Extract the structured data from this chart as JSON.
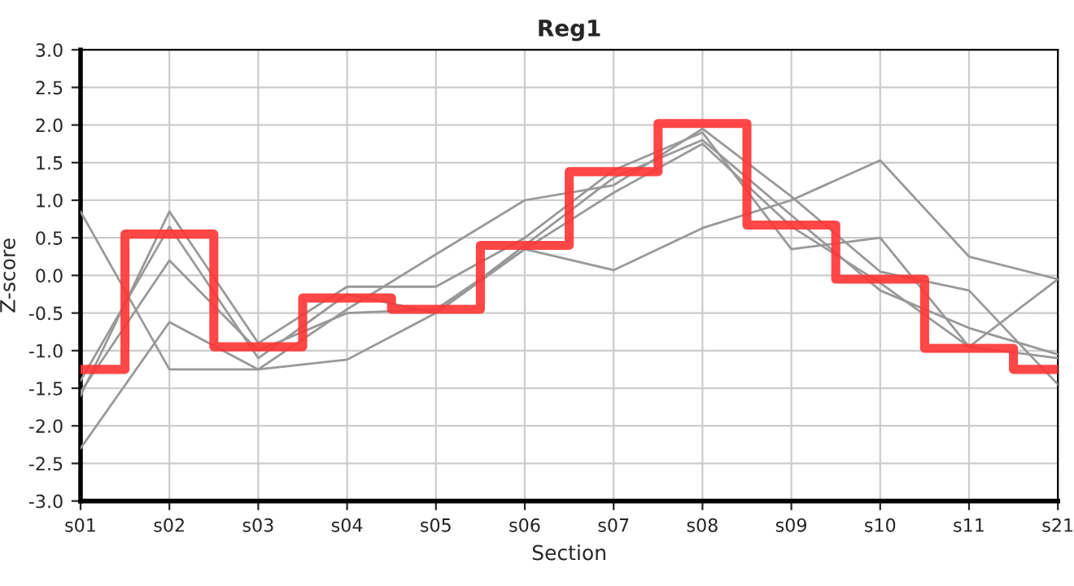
{
  "chart_data": {
    "type": "line",
    "title": "Reg1",
    "xlabel": "Section",
    "ylabel": "Z-score",
    "categories": [
      "s01",
      "s02",
      "s03",
      "s04",
      "s05",
      "s06",
      "s07",
      "s08",
      "s09",
      "s10",
      "s11",
      "s21"
    ],
    "series": [
      {
        "color": "#999999",
        "values": [
          0.85,
          -1.25,
          -1.25,
          -1.12,
          -0.5,
          0.35,
          0.07,
          0.63,
          1.0,
          1.53,
          0.25,
          -0.05
        ]
      },
      {
        "color": "#999999",
        "values": [
          -2.3,
          -0.62,
          -1.25,
          -0.45,
          0.28,
          1.0,
          1.2,
          1.95,
          1.05,
          0.05,
          -0.2,
          -1.45
        ]
      },
      {
        "color": "#999999",
        "values": [
          -1.6,
          0.85,
          -0.9,
          -0.15,
          -0.15,
          0.5,
          1.4,
          1.9,
          0.35,
          0.5,
          -0.95,
          -0.05
        ]
      },
      {
        "color": "#999999",
        "values": [
          -1.4,
          0.65,
          -1.1,
          -0.25,
          -0.5,
          0.4,
          1.3,
          1.8,
          0.8,
          -0.2,
          -0.7,
          -1.05
        ]
      },
      {
        "color": "#999999",
        "values": [
          -1.55,
          0.2,
          -1.0,
          -0.5,
          -0.45,
          0.35,
          1.1,
          1.75,
          0.65,
          -0.1,
          -0.95,
          -1.1
        ]
      },
      {
        "type": "step",
        "color": "#ff3333",
        "values": [
          -1.25,
          0.55,
          -0.95,
          -0.3,
          -0.45,
          0.4,
          1.38,
          2.02,
          0.67,
          -0.05,
          -0.97,
          -1.25
        ]
      }
    ],
    "ylim": [
      -3,
      3
    ],
    "yticks": [
      {
        "value": -3,
        "label": "-3.0"
      },
      {
        "value": -2.5,
        "label": "-2.5"
      },
      {
        "value": -2,
        "label": "-2.0"
      },
      {
        "value": -1.5,
        "label": "-1.5"
      },
      {
        "value": -1,
        "label": "-1.0"
      },
      {
        "value": -0.5,
        "label": "-0.5"
      },
      {
        "value": 0,
        "label": "0.0"
      },
      {
        "value": 0.5,
        "label": "0.5"
      },
      {
        "value": 1,
        "label": "1.0"
      },
      {
        "value": 1.5,
        "label": "1.5"
      },
      {
        "value": 2,
        "label": "2.0"
      },
      {
        "value": 2.5,
        "label": "2.5"
      },
      {
        "value": 3,
        "label": "3.0"
      }
    ],
    "grid": true,
    "legend": false
  }
}
